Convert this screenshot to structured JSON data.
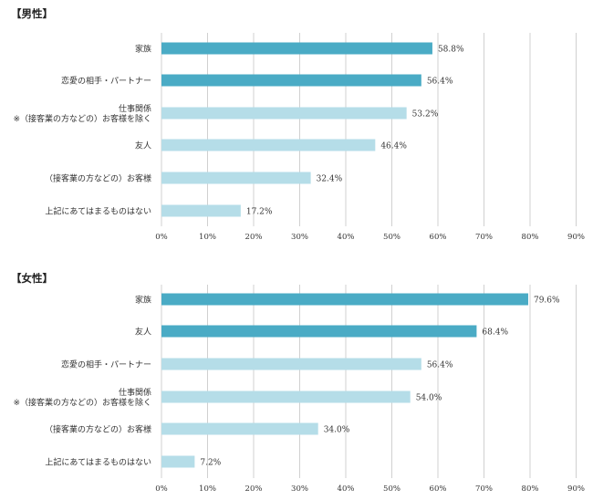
{
  "chart_data": [
    {
      "type": "bar",
      "orientation": "horizontal",
      "title": "【男性】",
      "categories": [
        "家族",
        "恋愛の相手・パートナー",
        "仕事関係\n※（接客業の方などの）お客様を除く",
        "友人",
        "（接客業の方などの）お客様",
        "上記にあてはまるものはない"
      ],
      "values": [
        58.8,
        56.4,
        53.2,
        46.4,
        32.4,
        17.2
      ],
      "value_labels": [
        "58.8%",
        "56.4%",
        "53.2%",
        "46.4%",
        "32.4%",
        "17.2%"
      ],
      "highlight": [
        true,
        true,
        false,
        false,
        false,
        false
      ],
      "xlim": [
        0,
        90
      ],
      "ticks": [
        "0%",
        "10%",
        "20%",
        "30%",
        "40%",
        "50%",
        "60%",
        "70%",
        "80%",
        "90%"
      ],
      "grid": "vertical"
    },
    {
      "type": "bar",
      "orientation": "horizontal",
      "title": "【女性】",
      "categories": [
        "家族",
        "友人",
        "恋愛の相手・パートナー",
        "仕事関係\n※（接客業の方などの）お客様を除く",
        "（接客業の方などの）お客様",
        "上記にあてはまるものはない"
      ],
      "values": [
        79.6,
        68.4,
        56.4,
        54.0,
        34.0,
        7.2
      ],
      "value_labels": [
        "79.6%",
        "68.4%",
        "56.4%",
        "54.0%",
        "34.0%",
        "7.2%"
      ],
      "highlight": [
        true,
        true,
        false,
        false,
        false,
        false
      ],
      "xlim": [
        0,
        90
      ],
      "ticks": [
        "0%",
        "10%",
        "20%",
        "30%",
        "40%",
        "50%",
        "60%",
        "70%",
        "80%",
        "90%"
      ],
      "grid": "vertical"
    }
  ],
  "colors": {
    "highlight": "#4aabc5",
    "normal": "#b5dde8",
    "grid": "#d0d0d0"
  }
}
